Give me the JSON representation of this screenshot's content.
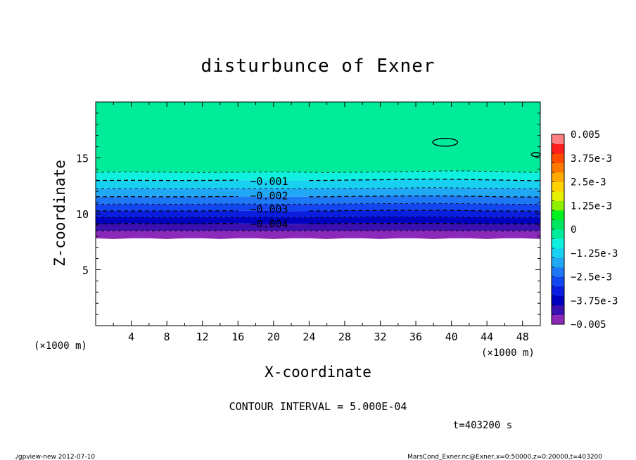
{
  "chart_data": {
    "type": "contour",
    "title": "disturbunce of Exner",
    "xlabel": "X-coordinate",
    "ylabel": "Z-coordinate",
    "x_unit": "(×1000 m)",
    "y_unit": "(×1000 m)",
    "xlim": [
      0,
      50
    ],
    "ylim": [
      0,
      20
    ],
    "x_ticks": [
      4,
      8,
      12,
      16,
      20,
      24,
      28,
      32,
      36,
      40,
      44,
      48
    ],
    "y_ticks": [
      5,
      10,
      15
    ],
    "contour_interval_text": "CONTOUR INTERVAL = 5.000E-04",
    "time_text": "t=403200 s",
    "data_extent_z": [
      7.8,
      20
    ],
    "colorbar": {
      "levels": [
        -0.005,
        -0.0045,
        -0.004,
        -0.0035,
        -0.003,
        -0.0025,
        -0.002,
        -0.0015,
        -0.001,
        -0.0005,
        0,
        0.0005,
        0.001,
        0.0015,
        0.002,
        0.0025,
        0.003,
        0.0035,
        0.004,
        0.0045,
        0.005
      ],
      "colors": [
        "#8b2ab8",
        "#3a10b0",
        "#0000c0",
        "#0a1ee0",
        "#1446f0",
        "#1e78f5",
        "#20a8f5",
        "#18d0f0",
        "#10f0e0",
        "#00ec9a",
        "#00e660",
        "#00f020",
        "#8cf000",
        "#e6f000",
        "#ffd200",
        "#ffaa00",
        "#ff7800",
        "#ff4a00",
        "#ff1e1e",
        "#ff8080"
      ],
      "tick_labels": [
        "0.005",
        "3.75e-3",
        "2.5e-3",
        "1.25e-3",
        "0",
        "−1.25e-3",
        "−2.5e-3",
        "−3.75e-3",
        "−0.005"
      ]
    },
    "contour_labels": [
      {
        "text": "−0.001",
        "x": 19.5,
        "z": 12.9
      },
      {
        "text": "−0.002",
        "x": 19.5,
        "z": 11.6
      },
      {
        "text": "−0.003",
        "x": 19.5,
        "z": 10.4
      },
      {
        "text": "−0.004",
        "x": 19.5,
        "z": 9.1
      }
    ],
    "contour_lines": [
      {
        "level": -0.0005,
        "dashed": true,
        "z": [
          13.72,
          13.73,
          13.74,
          13.73,
          13.72,
          13.71,
          13.7,
          13.71,
          13.72,
          13.73,
          13.74,
          13.73,
          13.71,
          13.7,
          13.71,
          13.72,
          13.74,
          13.76,
          13.79,
          13.82,
          13.84,
          13.83,
          13.8,
          13.76,
          13.72,
          13.7
        ]
      },
      {
        "level": -0.001,
        "dashed": true,
        "z": [
          12.98,
          12.99,
          13.0,
          12.99,
          12.98,
          12.98,
          12.99,
          13.0,
          13.01,
          13.0,
          12.99,
          12.98,
          12.98,
          12.99,
          13.01,
          13.03,
          13.05,
          13.07,
          13.09,
          13.1,
          13.09,
          13.07,
          13.04,
          13.01,
          12.98,
          12.96
        ]
      },
      {
        "level": -0.0015,
        "dashed": true,
        "z": [
          12.24,
          12.25,
          12.26,
          12.25,
          12.24,
          12.24,
          12.25,
          12.26,
          12.26,
          12.25,
          12.24,
          12.23,
          12.24,
          12.25,
          12.26,
          12.27,
          12.29,
          12.31,
          12.33,
          12.34,
          12.33,
          12.31,
          12.29,
          12.26,
          12.24,
          12.22
        ]
      },
      {
        "level": -0.002,
        "dashed": true,
        "z": [
          11.52,
          11.53,
          11.54,
          11.53,
          11.52,
          11.52,
          11.53,
          11.54,
          11.54,
          11.53,
          11.52,
          11.52,
          11.52,
          11.53,
          11.55,
          11.57,
          11.58,
          11.59,
          11.6,
          11.6,
          11.59,
          11.57,
          11.55,
          11.53,
          11.51,
          11.5
        ]
      },
      {
        "level": -0.0025,
        "dashed": true,
        "z": [
          10.86,
          10.87,
          10.88,
          10.87,
          10.86,
          10.86,
          10.87,
          10.88,
          10.88,
          10.87,
          10.86,
          10.86,
          10.86,
          10.87,
          10.89,
          10.9,
          10.91,
          10.92,
          10.93,
          10.93,
          10.92,
          10.9,
          10.88,
          10.86,
          10.85,
          10.84
        ]
      },
      {
        "level": -0.003,
        "dashed": true,
        "z": [
          10.25,
          10.26,
          10.26,
          10.25,
          10.25,
          10.25,
          10.26,
          10.27,
          10.27,
          10.26,
          10.25,
          10.24,
          10.25,
          10.26,
          10.28,
          10.29,
          10.3,
          10.3,
          10.31,
          10.31,
          10.3,
          10.28,
          10.26,
          10.25,
          10.24,
          10.23
        ]
      },
      {
        "level": -0.0035,
        "dashed": true,
        "z": [
          9.68,
          9.69,
          9.69,
          9.68,
          9.68,
          9.68,
          9.69,
          9.7,
          9.7,
          9.69,
          9.68,
          9.68,
          9.68,
          9.69,
          9.7,
          9.71,
          9.72,
          9.72,
          9.72,
          9.72,
          9.71,
          9.7,
          9.68,
          9.67,
          9.67,
          9.66
        ]
      },
      {
        "level": -0.004,
        "dashed": true,
        "z": [
          9.12,
          9.12,
          9.13,
          9.12,
          9.12,
          9.12,
          9.12,
          9.13,
          9.13,
          9.12,
          9.12,
          9.11,
          9.12,
          9.12,
          9.13,
          9.14,
          9.14,
          9.14,
          9.15,
          9.14,
          9.13,
          9.12,
          9.11,
          9.1,
          9.1,
          9.1
        ]
      },
      {
        "level": -0.0045,
        "dashed": true,
        "z": [
          8.48,
          8.48,
          8.49,
          8.48,
          8.48,
          8.48,
          8.48,
          8.49,
          8.49,
          8.48,
          8.48,
          8.47,
          8.48,
          8.48,
          8.49,
          8.49,
          8.5,
          8.5,
          8.5,
          8.5,
          8.49,
          8.48,
          8.47,
          8.47,
          8.47,
          8.47
        ]
      }
    ],
    "closed_contours": [
      {
        "level": 0.0005,
        "cx": 39.3,
        "cz": 16.4,
        "rx": 1.4,
        "rz": 0.35
      },
      {
        "level": 0.0005,
        "cx": 49.5,
        "cz": 15.3,
        "rx": 0.5,
        "rz": 0.18
      }
    ]
  },
  "footer": {
    "left": "./gpview-new   2012-07-10",
    "right": "MarsCond_Exner.nc@Exner,x=0:50000,z=0:20000,t=403200"
  }
}
